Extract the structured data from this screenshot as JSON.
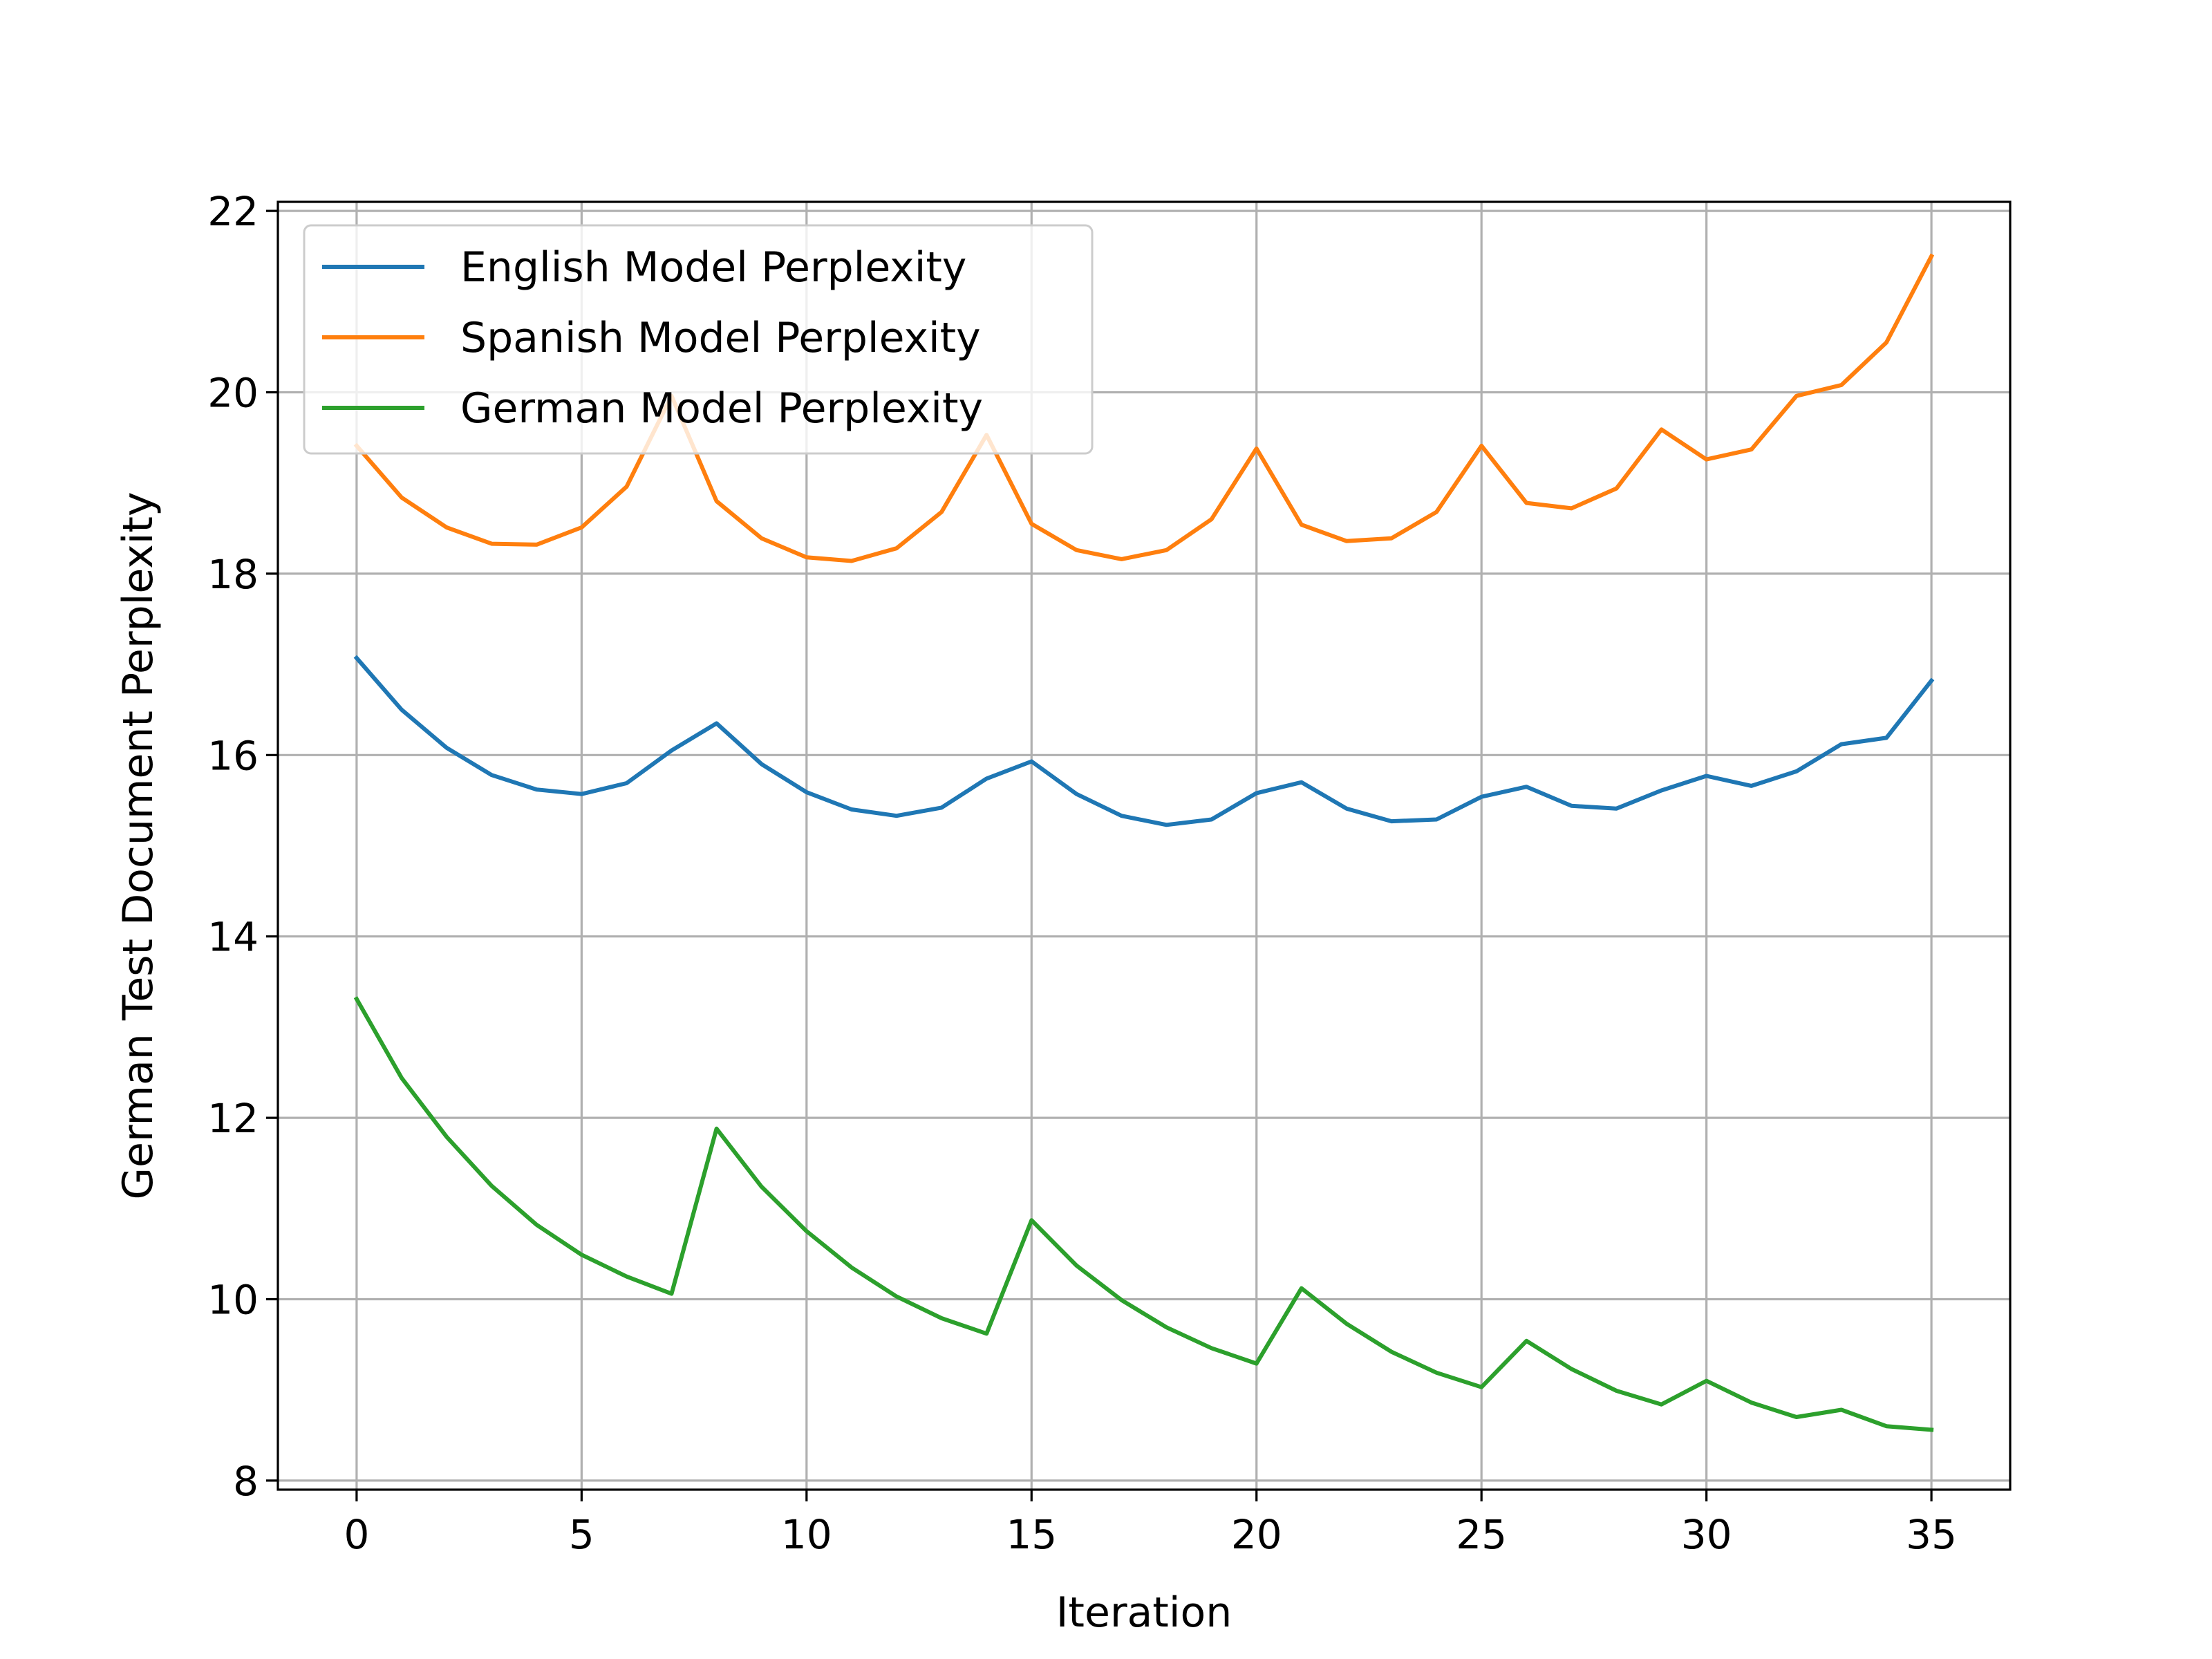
{
  "chart_data": {
    "type": "line",
    "title": "",
    "xlabel": "Iteration",
    "ylabel": "German Test Document Perplexity",
    "xlim": [
      -1.75,
      36.75
    ],
    "ylim": [
      7.9,
      22.1
    ],
    "xticks": [
      0,
      5,
      10,
      15,
      20,
      25,
      30,
      35
    ],
    "yticks": [
      8,
      10,
      12,
      14,
      16,
      18,
      20,
      22
    ],
    "grid": true,
    "legend_position": "upper-left",
    "x": [
      0,
      1,
      2,
      3,
      4,
      5,
      6,
      7,
      8,
      9,
      10,
      11,
      12,
      13,
      14,
      15,
      16,
      17,
      18,
      19,
      20,
      21,
      22,
      23,
      24,
      25,
      26,
      27,
      28,
      29,
      30,
      31,
      32,
      33,
      34,
      35
    ],
    "series": [
      {
        "name": "English Model Perplexity",
        "color": "#1f77b4",
        "values": [
          17.07,
          16.5,
          16.08,
          15.78,
          15.62,
          15.57,
          15.69,
          16.05,
          16.35,
          15.9,
          15.59,
          15.4,
          15.33,
          15.42,
          15.74,
          15.93,
          15.57,
          15.33,
          15.23,
          15.29,
          15.58,
          15.7,
          15.41,
          15.27,
          15.29,
          15.54,
          15.65,
          15.44,
          15.41,
          15.61,
          15.77,
          15.66,
          15.82,
          16.12,
          16.19,
          16.82
        ]
      },
      {
        "name": "Spanish Model Perplexity",
        "color": "#ff7f0e",
        "values": [
          19.41,
          18.84,
          18.51,
          18.33,
          18.32,
          18.51,
          18.96,
          19.96,
          18.8,
          18.39,
          18.18,
          18.14,
          18.28,
          18.68,
          19.53,
          18.55,
          18.26,
          18.16,
          18.26,
          18.6,
          19.38,
          18.54,
          18.36,
          18.39,
          18.68,
          19.41,
          18.78,
          18.72,
          18.94,
          19.59,
          19.26,
          19.37,
          19.96,
          20.08,
          20.55,
          21.5
        ]
      },
      {
        "name": "German Model Perplexity",
        "color": "#2ca02c",
        "values": [
          13.31,
          12.44,
          11.79,
          11.25,
          10.82,
          10.49,
          10.25,
          10.06,
          11.88,
          11.24,
          10.75,
          10.35,
          10.03,
          9.79,
          9.62,
          10.87,
          10.37,
          9.99,
          9.69,
          9.46,
          9.29,
          10.12,
          9.73,
          9.42,
          9.19,
          9.03,
          9.54,
          9.23,
          8.99,
          8.84,
          9.1,
          8.86,
          8.7,
          8.78,
          8.6,
          8.56
        ]
      }
    ]
  }
}
